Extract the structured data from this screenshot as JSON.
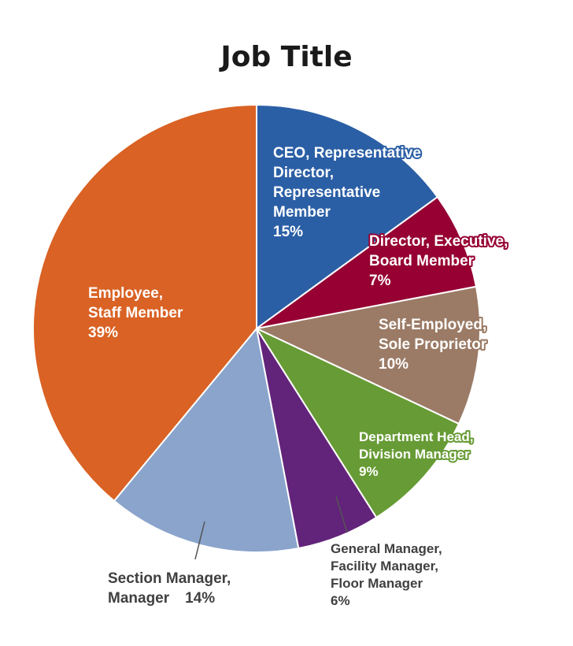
{
  "chart_data": {
    "type": "pie",
    "title": "Job Title",
    "slices": [
      {
        "label_lines": [
          "CEO, Representative",
          "Director,",
          "Representative",
          "Member"
        ],
        "pct_text": "15%",
        "value": 15,
        "color": "#2b5fa5",
        "label_color": "#ffffff",
        "outline_color": "#2b5fa5"
      },
      {
        "label_lines": [
          "Director, Executive,",
          "Board Member"
        ],
        "pct_text": "7%",
        "value": 7,
        "color": "#960032",
        "label_color": "#ffffff",
        "outline_color": "#960032"
      },
      {
        "label_lines": [
          "Self-Employed,",
          "Sole Proprietor"
        ],
        "pct_text": "10%",
        "value": 10,
        "color": "#9b7b66",
        "label_color": "#ffffff",
        "outline_color": "#9b7b66"
      },
      {
        "label_lines": [
          "Department Head,",
          "Division Manager"
        ],
        "pct_text": "9%",
        "value": 9,
        "color": "#679b35",
        "label_color": "#ffffff",
        "outline_color": "#679b35"
      },
      {
        "label_lines": [
          "General Manager,",
          "Facility Manager,",
          "Floor Manager"
        ],
        "pct_text": "6%",
        "value": 6,
        "color": "#62237a",
        "label_color": "#404040",
        "outline_color": "none"
      },
      {
        "label_lines": [
          "Section Manager,",
          "Manager"
        ],
        "pct_text": "14%",
        "value": 14,
        "color": "#8aa4cc",
        "label_color": "#404040",
        "outline_color": "none"
      },
      {
        "label_lines": [
          "Employee,",
          "Staff Member"
        ],
        "pct_text": "39%",
        "value": 39,
        "color": "#d96224",
        "label_color": "#ffffff",
        "outline_color": "none"
      }
    ]
  }
}
